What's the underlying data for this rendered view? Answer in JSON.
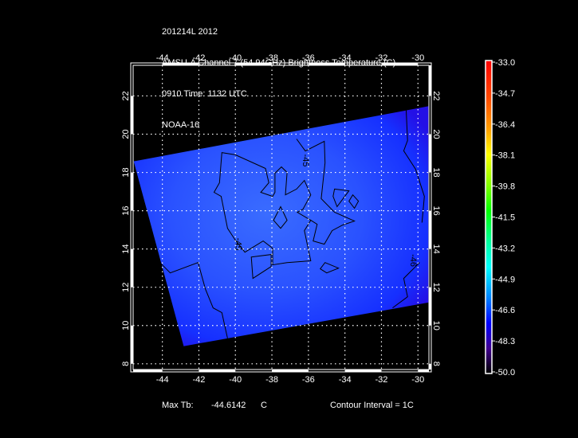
{
  "header": {
    "line1": "201214L 2012",
    "line2": "AMSU-A Channel 7 (54.94GHz) Brightness Temperature (C)",
    "line3": "0910 Time: 1132 UTC",
    "line4": "NOAA-16"
  },
  "footer": {
    "max_label": "Max Tb:",
    "max_value": "-44.6142",
    "max_unit": "C",
    "contour_interval": "Contour Interval = 1C"
  },
  "colorbar": {
    "min": -50.0,
    "max": -33.0,
    "tick_labels": [
      "-33.0",
      "-34.7",
      "-36.4",
      "-38.1",
      "-39.8",
      "-41.5",
      "-43.2",
      "-44.9",
      "-46.6",
      "-48.3",
      "-50.0"
    ]
  },
  "chart_data": {
    "type": "map",
    "xlim": [
      -45.6,
      -29.4
    ],
    "ylim": [
      7.7,
      23.6
    ],
    "grid": true,
    "x_ticks": [
      -44,
      -42,
      -40,
      -38,
      -36,
      -34,
      -32,
      -30
    ],
    "x_tick_labels": [
      "-44",
      "-42",
      "-40",
      "-38",
      "-36",
      "-34",
      "-32",
      "-30"
    ],
    "y_ticks": [
      8,
      10,
      12,
      14,
      16,
      18,
      20,
      22
    ],
    "y_tick_labels": [
      "8",
      "10",
      "12",
      "14",
      "16",
      "18",
      "20",
      "22"
    ],
    "swath_corners": [
      [
        -45.57,
        18.58
      ],
      [
        -29.43,
        21.46
      ],
      [
        -29.43,
        11.2
      ],
      [
        -42.83,
        8.92
      ]
    ],
    "contours": [
      {
        "closed": true,
        "points": [
          [
            -40.74,
            19.04
          ],
          [
            -40.0,
            18.92
          ],
          [
            -38.35,
            18.21
          ],
          [
            -38.17,
            17.46
          ],
          [
            -38.61,
            16.96
          ],
          [
            -37.96,
            16.75
          ],
          [
            -37.83,
            16.96
          ],
          [
            -37.83,
            17.96
          ],
          [
            -37.48,
            18.29
          ],
          [
            -37.17,
            18.0
          ],
          [
            -37.26,
            16.83
          ],
          [
            -36.65,
            17.13
          ],
          [
            -36.22,
            17.58
          ],
          [
            -35.87,
            16.83
          ],
          [
            -36.3,
            16.08
          ],
          [
            -36.61,
            15.92
          ],
          [
            -35.87,
            15.5
          ],
          [
            -36.22,
            14.96
          ],
          [
            -35.87,
            13.38
          ],
          [
            -37.17,
            13.29
          ],
          [
            -37.96,
            13.17
          ],
          [
            -37.96,
            14.04
          ],
          [
            -38.48,
            14.42
          ],
          [
            -39.48,
            13.83
          ],
          [
            -40.0,
            14.46
          ],
          [
            -40.43,
            15.08
          ],
          [
            -40.78,
            16.75
          ],
          [
            -41.17,
            16.96
          ],
          [
            -40.87,
            17.46
          ]
        ]
      },
      {
        "closed": false,
        "points": [
          [
            -36.65,
            19.75
          ],
          [
            -36.17,
            19.12
          ],
          [
            -35.13,
            19.63
          ],
          [
            -35.09,
            18.5
          ],
          [
            -35.3,
            16.63
          ],
          [
            -34.57,
            15.92
          ],
          [
            -33.48,
            15.46
          ],
          [
            -34.13,
            15.25
          ],
          [
            -34.7,
            14.96
          ],
          [
            -35.13,
            14.25
          ],
          [
            -35.74,
            14.42
          ],
          [
            -35.52,
            15.29
          ],
          [
            -35.87,
            15.5
          ]
        ]
      },
      {
        "closed": false,
        "points": [
          [
            -45.22,
            14.13
          ],
          [
            -44.13,
            13.29
          ],
          [
            -43.57,
            12.75
          ],
          [
            -42.04,
            13.29
          ],
          [
            -41.65,
            11.92
          ],
          [
            -41.22,
            10.92
          ],
          [
            -40.74,
            10.67
          ],
          [
            -40.43,
            9.33
          ]
        ]
      },
      {
        "closed": false,
        "points": [
          [
            -30.65,
            21.33
          ],
          [
            -30.57,
            19.67
          ],
          [
            -30.78,
            19.13
          ],
          [
            -30.13,
            18.17
          ],
          [
            -29.65,
            16.75
          ],
          [
            -29.78,
            15.38
          ]
        ]
      },
      {
        "closed": false,
        "points": [
          [
            -29.91,
            13.29
          ],
          [
            -30.78,
            12.46
          ],
          [
            -30.57,
            11.5
          ],
          [
            -31.39,
            10.92
          ]
        ]
      },
      {
        "closed": true,
        "points": [
          [
            -37.52,
            16.21
          ],
          [
            -37.17,
            15.5
          ],
          [
            -37.52,
            15.08
          ],
          [
            -37.91,
            15.5
          ]
        ]
      },
      {
        "closed": true,
        "points": [
          [
            -39.13,
            13.58
          ],
          [
            -38.04,
            13.71
          ],
          [
            -38.04,
            13.08
          ],
          [
            -39.04,
            12.46
          ]
        ]
      },
      {
        "closed": true,
        "points": [
          [
            -35.09,
            13.29
          ],
          [
            -34.35,
            13.0
          ],
          [
            -35.0,
            12.75
          ],
          [
            -35.35,
            12.96
          ]
        ]
      },
      {
        "closed": true,
        "points": [
          [
            -34.57,
            17.13
          ],
          [
            -33.78,
            17.04
          ],
          [
            -34.43,
            16.21
          ],
          [
            -34.65,
            16.75
          ]
        ]
      },
      {
        "closed": true,
        "points": [
          [
            -33.57,
            16.83
          ],
          [
            -33.26,
            16.5
          ],
          [
            -33.48,
            16.13
          ],
          [
            -33.78,
            16.5
          ]
        ]
      }
    ],
    "contour_labels": [
      {
        "text": "-45",
        "lon": -36.3,
        "lat": 18.63
      },
      {
        "text": "-45",
        "lon": -40.0,
        "lat": 14.25
      },
      {
        "text": "-46",
        "lon": -30.4,
        "lat": 13.4
      }
    ]
  }
}
